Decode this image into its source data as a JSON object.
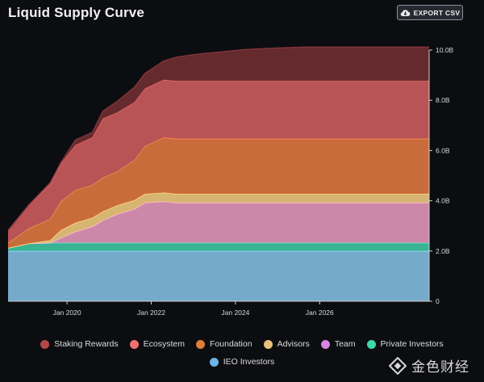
{
  "header": {
    "title": "Liquid Supply Curve",
    "export_label": "EXPORT CSV",
    "export_icon": "cloud-download-icon"
  },
  "watermark": {
    "text": "金色财经",
    "icon": "diamond-logo-icon"
  },
  "chart_data": {
    "type": "area",
    "stacked": true,
    "title": "Liquid Supply Curve",
    "xlabel": "",
    "ylabel": "",
    "x_ticks": [
      "Jan 2020",
      "Jan 2022",
      "Jan 2024",
      "Jan 2026"
    ],
    "y_ticks": [
      "0",
      "2.0B",
      "4.0B",
      "6.0B",
      "8.0B",
      "10.0B"
    ],
    "xlim": [
      2018.6,
      2028.6
    ],
    "ylim": [
      0,
      10
    ],
    "y_unit": "B",
    "legend_position": "bottom",
    "grid": false,
    "x": [
      2018.6,
      2019.1,
      2019.6,
      2019.85,
      2020.2,
      2020.6,
      2020.85,
      2021.2,
      2021.6,
      2021.85,
      2022.3,
      2022.6,
      2023.0,
      2023.6,
      2024.2,
      2024.8,
      2025.6,
      2026.2,
      2026.8,
      2027.6,
      2028.6
    ],
    "series": [
      {
        "name": "IEO Investors",
        "color": "#7fb7db",
        "values": [
          2.0,
          2.0,
          2.0,
          2.0,
          2.0,
          2.0,
          2.0,
          2.0,
          2.0,
          2.0,
          2.0,
          2.0,
          2.0,
          2.0,
          2.0,
          2.0,
          2.0,
          2.0,
          2.0,
          2.0,
          2.0
        ]
      },
      {
        "name": "Private Investors",
        "color": "#3fc0a0",
        "values": [
          0.12,
          0.3,
          0.32,
          0.32,
          0.32,
          0.32,
          0.32,
          0.32,
          0.32,
          0.32,
          0.32,
          0.32,
          0.32,
          0.32,
          0.32,
          0.32,
          0.32,
          0.32,
          0.32,
          0.32,
          0.32
        ]
      },
      {
        "name": "Team",
        "color": "#dc93b5",
        "values": [
          0,
          0,
          0,
          0.2,
          0.45,
          0.65,
          0.9,
          1.15,
          1.35,
          1.6,
          1.65,
          1.6,
          1.6,
          1.6,
          1.6,
          1.6,
          1.6,
          1.6,
          1.6,
          1.6,
          1.6
        ]
      },
      {
        "name": "Advisors",
        "color": "#e8c27a",
        "values": [
          0,
          0,
          0.1,
          0.3,
          0.35,
          0.35,
          0.35,
          0.35,
          0.35,
          0.35,
          0.35,
          0.35,
          0.35,
          0.35,
          0.35,
          0.35,
          0.35,
          0.35,
          0.35,
          0.35,
          0.35
        ]
      },
      {
        "name": "Foundation",
        "color": "#d9743f",
        "values": [
          0.2,
          0.6,
          0.85,
          1.15,
          1.3,
          1.3,
          1.35,
          1.35,
          1.6,
          1.9,
          2.2,
          2.2,
          2.2,
          2.2,
          2.2,
          2.2,
          2.2,
          2.2,
          2.2,
          2.2,
          2.2
        ]
      },
      {
        "name": "Ecosystem",
        "color": "#c85a5c",
        "values": [
          0.5,
          0.95,
          1.4,
          1.5,
          1.8,
          1.9,
          2.35,
          2.35,
          2.3,
          2.3,
          2.3,
          2.3,
          2.3,
          2.3,
          2.3,
          2.3,
          2.3,
          2.3,
          2.3,
          2.3,
          2.3
        ]
      },
      {
        "name": "Staking Rewards",
        "color": "#6e2c30",
        "values": [
          0,
          0,
          0.05,
          0.05,
          0.2,
          0.2,
          0.3,
          0.45,
          0.6,
          0.6,
          0.75,
          0.95,
          1.05,
          1.15,
          1.25,
          1.3,
          1.35,
          1.35,
          1.35,
          1.35,
          1.35
        ]
      }
    ]
  },
  "legend": [
    {
      "label": "Staking Rewards",
      "color": "#b34649"
    },
    {
      "label": "Ecosystem",
      "color": "#f07072"
    },
    {
      "label": "Foundation",
      "color": "#de7e38"
    },
    {
      "label": "Advisors",
      "color": "#e8c27a"
    },
    {
      "label": "Team",
      "color": "#d884e0"
    },
    {
      "label": "Private Investors",
      "color": "#3fd6a8"
    },
    {
      "label": "IEO Investors",
      "color": "#6fb3e8"
    }
  ]
}
